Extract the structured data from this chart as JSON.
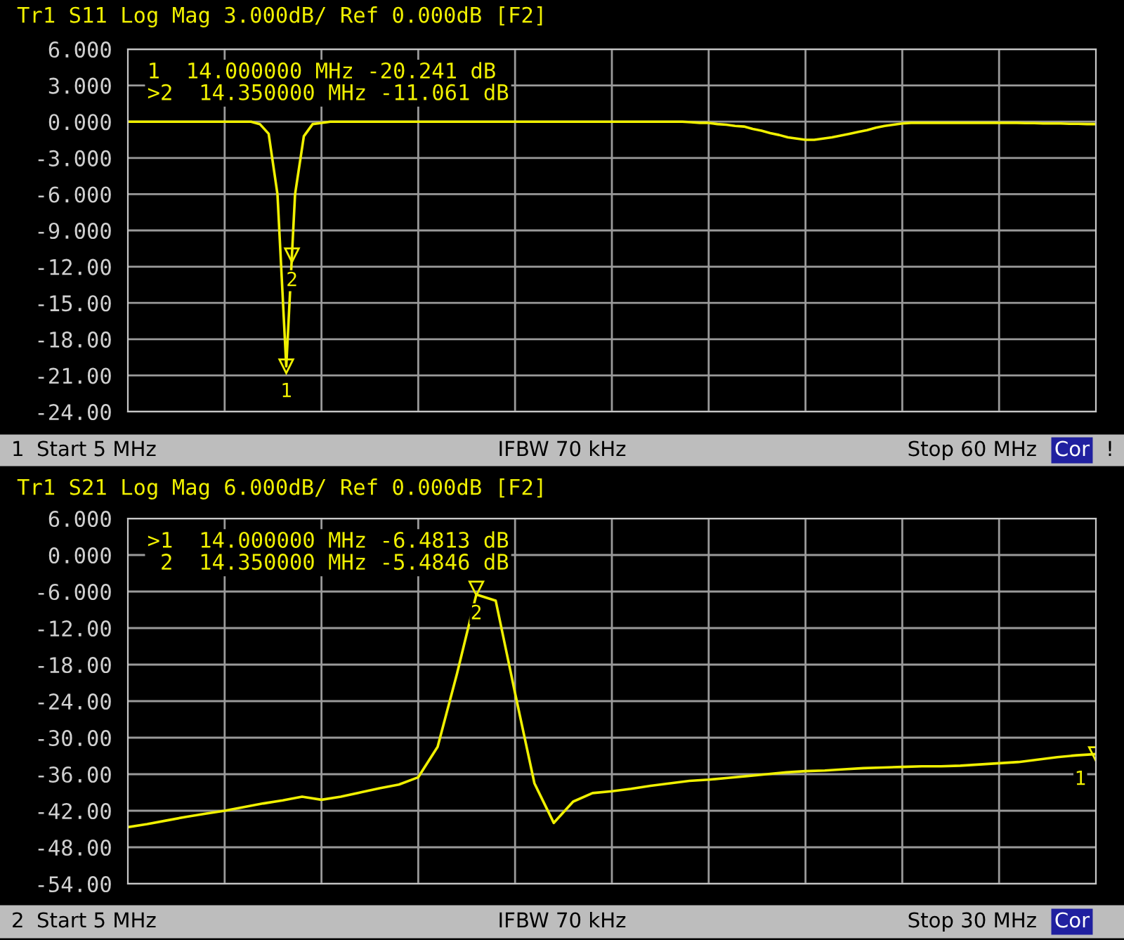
{
  "chart_data": [
    {
      "type": "line",
      "title": "Tr1 S11 Log Mag 3.000dB/ Ref 0.000dB [F2]",
      "categories": [
        null,
        null,
        null,
        null,
        null,
        null,
        null,
        null,
        null,
        null,
        null,
        null,
        null,
        null,
        null,
        null,
        null,
        null,
        null,
        null,
        null,
        null,
        null,
        null,
        null,
        null,
        null,
        null,
        null,
        null,
        null,
        null,
        null,
        null,
        null,
        null,
        null,
        null,
        null,
        null,
        null,
        null,
        null,
        null,
        null,
        null,
        null,
        null,
        null,
        null,
        null,
        null,
        null,
        null,
        null,
        null,
        null,
        null,
        null,
        null,
        null,
        null,
        null,
        null,
        null,
        null,
        null,
        null,
        null,
        null,
        null,
        null,
        null,
        null,
        null,
        null,
        null,
        null,
        null,
        null,
        null,
        null,
        null,
        null,
        null,
        null,
        null,
        null,
        null,
        null,
        null,
        null,
        null,
        null,
        null,
        null,
        null,
        null,
        null,
        null,
        null,
        null,
        null,
        null,
        null,
        null,
        null,
        null,
        null,
        null,
        null
      ],
      "series": [
        {
          "color": "#f0f000",
          "values": [
            0,
            0,
            0,
            0,
            0,
            0,
            0,
            0,
            0,
            0,
            0,
            0,
            0,
            0,
            0,
            -0.2,
            -1,
            -6,
            -20.241,
            -6,
            -1.2,
            -0.2,
            -0.1,
            0,
            0,
            0,
            0,
            0,
            0,
            0,
            0,
            0,
            0,
            0,
            0,
            0,
            0,
            0,
            0,
            0,
            0,
            0,
            0,
            0,
            0,
            0,
            0,
            0,
            0,
            0,
            0,
            0,
            0,
            0,
            0,
            0,
            0,
            0,
            0,
            0,
            0,
            0,
            0,
            0,
            -0.05,
            -0.1,
            -0.1,
            -0.2,
            -0.25,
            -0.35,
            -0.4,
            -0.6,
            -0.75,
            -0.95,
            -1.1,
            -1.3,
            -1.4,
            -1.5,
            -1.5,
            -1.4,
            -1.3,
            -1.15,
            -1.0,
            -0.85,
            -0.7,
            -0.5,
            -0.35,
            -0.25,
            -0.15,
            -0.1,
            -0.1,
            -0.1,
            -0.1,
            -0.1,
            -0.1,
            -0.1,
            -0.1,
            -0.1,
            -0.1,
            -0.1,
            -0.1,
            -0.1,
            -0.12,
            -0.12,
            -0.15,
            -0.15,
            -0.15,
            -0.18,
            -0.18,
            -0.2,
            -0.2
          ]
        }
      ],
      "ylim": [
        -24,
        6
      ],
      "yticks": [
        {
          "value": 6,
          "label": "6.000"
        },
        {
          "value": 3,
          "label": "3.000"
        },
        {
          "value": 0,
          "label": "0.000"
        },
        {
          "value": -3,
          "label": "-3.000"
        },
        {
          "value": -6,
          "label": "-6.000"
        },
        {
          "value": -9,
          "label": "-9.000"
        },
        {
          "value": -12,
          "label": "-12.00"
        },
        {
          "value": -15,
          "label": "-15.00"
        },
        {
          "value": -18,
          "label": "-18.00"
        },
        {
          "value": -21,
          "label": "-21.00"
        },
        {
          "value": -24,
          "label": "-24.00"
        }
      ],
      "tick_labels": "y",
      "grid": true,
      "annotations": [
        "1  14.000000 MHz -20.241 dB",
        ">2  14.350000 MHz -11.061 dB",
        {
          "text": "1",
          "y": -20.241
        },
        {
          "text": "2",
          "y": -11.061
        },
        "1",
        "Start 5 MHz",
        "IFBW 70 kHz",
        "Stop 60 MHz",
        "Cor",
        "!"
      ]
    },
    {
      "type": "line",
      "title": "Tr1 S21 Log Mag 6.000dB/ Ref 0.000dB [F2]",
      "categories": [
        null,
        null,
        null,
        null,
        null,
        null,
        null,
        null,
        null,
        null,
        null,
        null,
        null,
        null,
        null,
        null,
        null,
        null,
        null,
        null,
        null,
        null,
        null,
        null,
        null,
        null,
        null,
        null,
        null,
        null,
        null,
        null,
        null,
        null,
        null,
        null,
        null,
        null,
        null,
        null,
        null,
        null,
        null,
        null,
        null,
        null,
        null,
        null,
        null,
        null,
        null
      ],
      "series": [
        {
          "color": "#f0f000",
          "values": [
            -44.7,
            -44.2,
            -43.6,
            -43.0,
            -42.5,
            -42.0,
            -41.4,
            -40.8,
            -40.3,
            -39.7,
            -40.2,
            -39.7,
            -39.0,
            -38.3,
            -37.7,
            -36.5,
            -31.5,
            -19.5,
            -6.4813,
            -7.5,
            -22.7,
            -37.5,
            -44.0,
            -40.5,
            -39.1,
            -38.8,
            -38.4,
            -37.9,
            -37.5,
            -37.1,
            -36.9,
            -36.6,
            -36.3,
            -36.0,
            -35.7,
            -35.5,
            -35.4,
            -35.2,
            -35.0,
            -34.9,
            -34.8,
            -34.7,
            -34.7,
            -34.6,
            -34.4,
            -34.2,
            -34.0,
            -33.6,
            -33.2,
            -32.9,
            -32.7
          ]
        }
      ],
      "ylim": [
        -54,
        6
      ],
      "yticks": [
        {
          "value": 6,
          "label": "6.000"
        },
        {
          "value": 0,
          "label": "0.000"
        },
        {
          "value": -6,
          "label": "-6.000"
        },
        {
          "value": -12,
          "label": "-12.00"
        },
        {
          "value": -18,
          "label": "-18.00"
        },
        {
          "value": -24,
          "label": "-24.00"
        },
        {
          "value": -30,
          "label": "-30.00"
        },
        {
          "value": -36,
          "label": "-36.00"
        },
        {
          "value": -42,
          "label": "-42.00"
        },
        {
          "value": -48,
          "label": "-48.00"
        },
        {
          "value": -54,
          "label": "-54.00"
        }
      ],
      "tick_labels": "y",
      "grid": true,
      "annotations": [
        ">1  14.000000 MHz -6.4813 dB",
        " 2  14.350000 MHz -5.4846 dB",
        {
          "text": "1",
          "y": -32.7
        },
        {
          "text": "2",
          "y": -5.4846
        },
        "2",
        "Start 5 MHz",
        "IFBW 70 kHz",
        "Stop 30 MHz",
        "Cor"
      ]
    }
  ]
}
